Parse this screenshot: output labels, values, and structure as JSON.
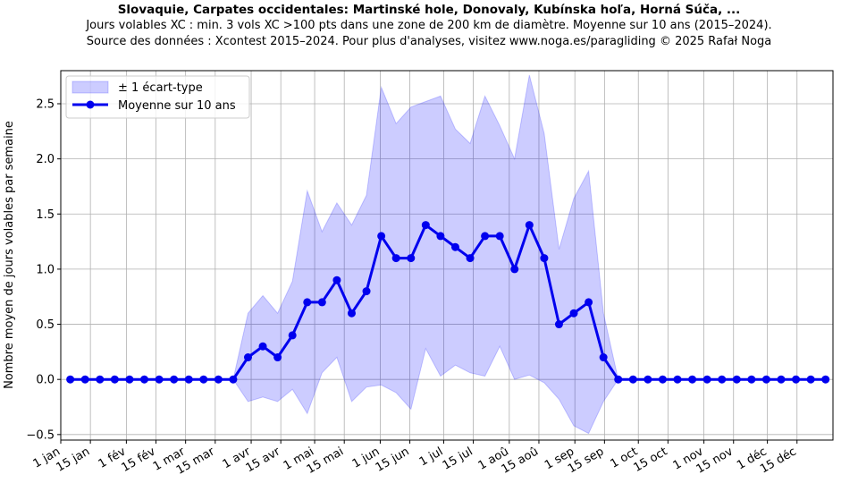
{
  "chart_data": {
    "type": "line",
    "title": "Slovaquie, Carpates occidentales: Martinské hole, Donovaly, Kubínska hoľa, Horná Súča, ...",
    "subtitle_lines": [
      "Jours volables XC : min. 3 vols XC >100 pts dans une zone de 200 km de diamètre. Moyenne sur 10 ans (2015–2024).",
      "Source des données : Xcontest 2015–2024. Pour plus d'analyses, visitez www.noga.es/paragliding © 2025 Rafał Noga"
    ],
    "xlabel": "",
    "ylabel": "Nombre moyen de jours volables par semaine",
    "xlim": [
      0,
      365
    ],
    "ylim": [
      -0.55,
      2.8
    ],
    "yticks": [
      -0.5,
      0.0,
      0.5,
      1.0,
      1.5,
      2.0,
      2.5
    ],
    "ytick_labels": [
      "−0.5",
      "0.0",
      "0.5",
      "1.0",
      "1.5",
      "2.0",
      "2.5"
    ],
    "xticks": [
      0,
      14,
      31,
      45,
      59,
      73,
      90,
      104,
      120,
      134,
      151,
      165,
      181,
      195,
      212,
      226,
      243,
      257,
      273,
      287,
      304,
      318,
      334,
      348
    ],
    "xtick_labels": [
      "1 jan",
      "15 jan",
      "1 fév",
      "15 fév",
      "1 mar",
      "15 mar",
      "1 avr",
      "15 avr",
      "1 mai",
      "15 mai",
      "1 jun",
      "15 jun",
      "1 jul",
      "15 jul",
      "1 aoû",
      "15 aoû",
      "1 sep",
      "15 sep",
      "1 oct",
      "15 oct",
      "1 nov",
      "15 nov",
      "1 déc",
      "15 déc"
    ],
    "grid": true,
    "legend_position": "top-left",
    "x": [
      4.5,
      11.5,
      18.5,
      25.5,
      32.5,
      39.5,
      46.5,
      53.5,
      60.5,
      67.5,
      74.5,
      81.5,
      88.5,
      95.5,
      102.5,
      109.5,
      116.5,
      123.5,
      130.5,
      137.5,
      144.5,
      151.5,
      158.5,
      165.5,
      172.5,
      179.5,
      186.5,
      193.5,
      200.5,
      207.5,
      214.5,
      221.5,
      228.5,
      235.5,
      242.5,
      249.5,
      256.5,
      263.5,
      270.5,
      277.5,
      284.5,
      291.5,
      298.5,
      305.5,
      312.5,
      319.5,
      326.5,
      333.5,
      340.5,
      347.5,
      354.5,
      361.5
    ],
    "series": [
      {
        "name": "Moyenne sur 10 ans",
        "color": "#0000ee",
        "values": [
          0,
          0,
          0,
          0,
          0,
          0,
          0,
          0,
          0,
          0,
          0,
          0,
          0.2,
          0.3,
          0.2,
          0.4,
          0.7,
          0.7,
          0.9,
          0.6,
          0.8,
          1.3,
          1.1,
          1.1,
          1.4,
          1.3,
          1.2,
          1.1,
          1.3,
          1.3,
          1.0,
          1.4,
          1.1,
          0.5,
          0.6,
          0.7,
          0.2,
          0,
          0,
          0,
          0,
          0,
          0,
          0,
          0,
          0,
          0,
          0,
          0,
          0,
          0,
          0
        ]
      },
      {
        "name": "± 1 écart-type",
        "type": "band",
        "color": "#0000ff",
        "upper": [
          0,
          0,
          0,
          0,
          0,
          0,
          0,
          0,
          0,
          0,
          0,
          0,
          0.6,
          0.76,
          0.6,
          0.89,
          1.71,
          1.34,
          1.6,
          1.4,
          1.67,
          2.65,
          2.32,
          2.47,
          2.52,
          2.57,
          2.27,
          2.14,
          2.57,
          2.3,
          2.0,
          2.76,
          2.23,
          1.18,
          1.64,
          1.89,
          0.6,
          0,
          0,
          0,
          0,
          0,
          0,
          0,
          0,
          0,
          0,
          0,
          0,
          0,
          0,
          0
        ],
        "lower": [
          0,
          0,
          0,
          0,
          0,
          0,
          0,
          0,
          0,
          0,
          0,
          0,
          -0.2,
          -0.16,
          -0.2,
          -0.09,
          -0.31,
          0.06,
          0.2,
          -0.2,
          -0.07,
          -0.05,
          -0.12,
          -0.27,
          0.28,
          0.03,
          0.13,
          0.06,
          0.03,
          0.3,
          0.0,
          0.04,
          -0.03,
          -0.18,
          -0.42,
          -0.49,
          -0.2,
          0,
          0,
          0,
          0,
          0,
          0,
          0,
          0,
          0,
          0,
          0,
          0,
          0,
          0,
          0
        ]
      }
    ]
  }
}
